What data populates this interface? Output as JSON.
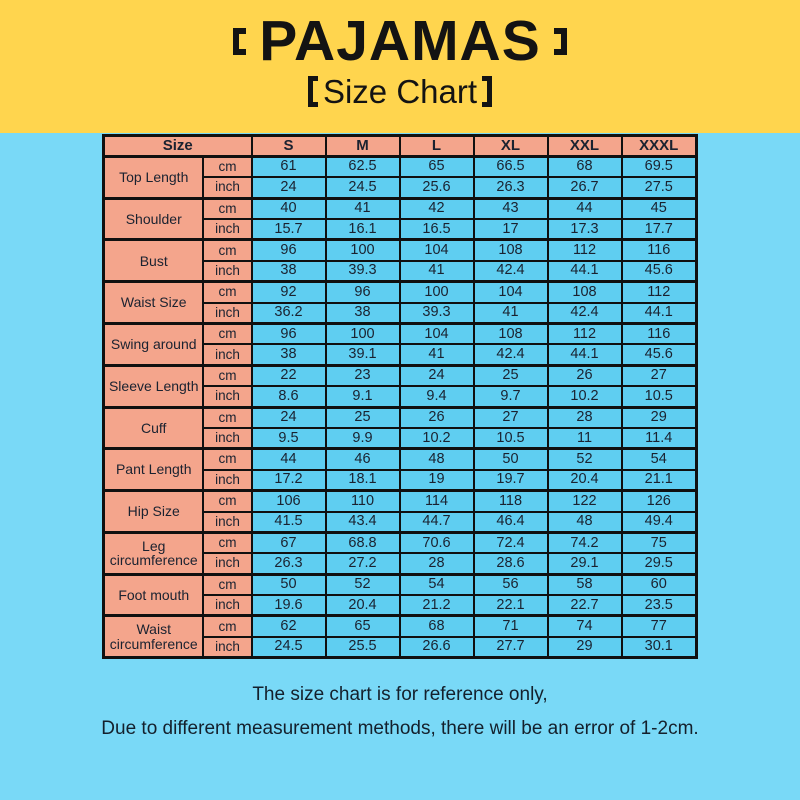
{
  "colors": {
    "yellow": "#FFD54E",
    "salmon": "#F4A58C",
    "cell_blue": "#5FCEF1",
    "bg_blue": "#79D9F7",
    "border": "#101010",
    "text": "#1A2230"
  },
  "header": {
    "brand": "PAJAMAS",
    "subtitle": "Size Chart"
  },
  "chart_data": {
    "type": "table",
    "title": "PAJAMAS Size Chart",
    "size_label": "Size",
    "sizes": [
      "S",
      "M",
      "L",
      "XL",
      "XXL",
      "XXXL"
    ],
    "units": [
      "cm",
      "inch"
    ],
    "rows": [
      {
        "label": "Top Length",
        "cm": [
          61,
          62.5,
          65,
          66.5,
          68,
          69.5
        ],
        "inch": [
          24,
          24.5,
          25.6,
          26.3,
          26.7,
          27.5
        ]
      },
      {
        "label": "Shoulder",
        "cm": [
          40,
          41,
          42,
          43,
          44,
          45
        ],
        "inch": [
          15.7,
          16.1,
          16.5,
          17,
          17.3,
          17.7
        ]
      },
      {
        "label": "Bust",
        "cm": [
          96,
          100,
          104,
          108,
          112,
          116
        ],
        "inch": [
          38,
          39.3,
          41,
          42.4,
          44.1,
          45.6
        ]
      },
      {
        "label": "Waist Size",
        "cm": [
          92,
          96,
          100,
          104,
          108,
          112
        ],
        "inch": [
          36.2,
          38,
          39.3,
          41,
          42.4,
          44.1
        ]
      },
      {
        "label": "Swing around",
        "cm": [
          96,
          100,
          104,
          108,
          112,
          116
        ],
        "inch": [
          38,
          39.1,
          41,
          42.4,
          44.1,
          45.6
        ]
      },
      {
        "label": "Sleeve Length",
        "cm": [
          22,
          23,
          24,
          25,
          26,
          27
        ],
        "inch": [
          8.6,
          9.1,
          9.4,
          9.7,
          10.2,
          10.5
        ]
      },
      {
        "label": "Cuff",
        "cm": [
          24,
          25,
          26,
          27,
          28,
          29
        ],
        "inch": [
          9.5,
          9.9,
          10.2,
          10.5,
          11,
          11.4
        ]
      },
      {
        "label": "Pant Length",
        "cm": [
          44,
          46,
          48,
          50,
          52,
          54
        ],
        "inch": [
          17.2,
          18.1,
          19,
          19.7,
          20.4,
          21.1
        ]
      },
      {
        "label": "Hip Size",
        "cm": [
          106,
          110,
          114,
          118,
          122,
          126
        ],
        "inch": [
          41.5,
          43.4,
          44.7,
          46.4,
          48,
          49.4
        ]
      },
      {
        "label": "Leg circumference",
        "cm": [
          67,
          68.8,
          70.6,
          72.4,
          74.2,
          75
        ],
        "inch": [
          26.3,
          27.2,
          28,
          28.6,
          29.1,
          29.5
        ]
      },
      {
        "label": "Foot mouth",
        "cm": [
          50,
          52,
          54,
          56,
          58,
          60
        ],
        "inch": [
          19.6,
          20.4,
          21.2,
          22.1,
          22.7,
          23.5
        ]
      },
      {
        "label": "Waist circumference",
        "cm": [
          62,
          65,
          68,
          71,
          74,
          77
        ],
        "inch": [
          24.5,
          25.5,
          26.6,
          27.7,
          29,
          30.1
        ]
      }
    ]
  },
  "footer": {
    "line1": "The size chart is for reference only,",
    "line2": "Due to different measurement methods, there will be an error of 1-2cm."
  }
}
